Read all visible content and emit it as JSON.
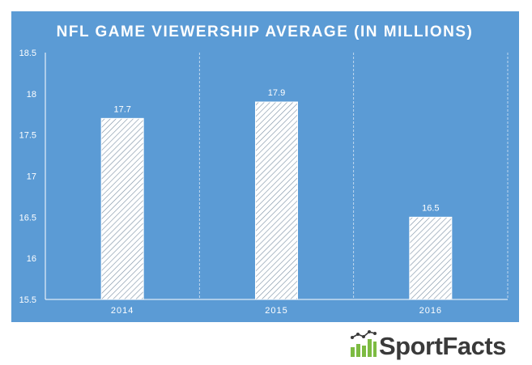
{
  "chart_data": {
    "type": "bar",
    "title": "NFL GAME VIEWERSHIP AVERAGE (IN MILLIONS)",
    "categories": [
      "2014",
      "2015",
      "2016"
    ],
    "values": [
      17.7,
      17.9,
      16.5
    ],
    "data_labels": [
      "17.7",
      "17.9",
      "16.5"
    ],
    "ylim": [
      15.5,
      18.5
    ],
    "y_ticks": [
      "15.5",
      "16",
      "16.5",
      "17",
      "17.5",
      "18",
      "18.5"
    ],
    "grid": "vertical separators between categories",
    "colors": {
      "background": "#5b9bd5",
      "bar": "#ffffff",
      "text": "#ffffff"
    }
  },
  "brand": {
    "name": "SportFacts",
    "icon": "bar-chart-trend-icon",
    "colors": {
      "bars": "#7dbb42",
      "line": "#3a3a3a"
    }
  }
}
